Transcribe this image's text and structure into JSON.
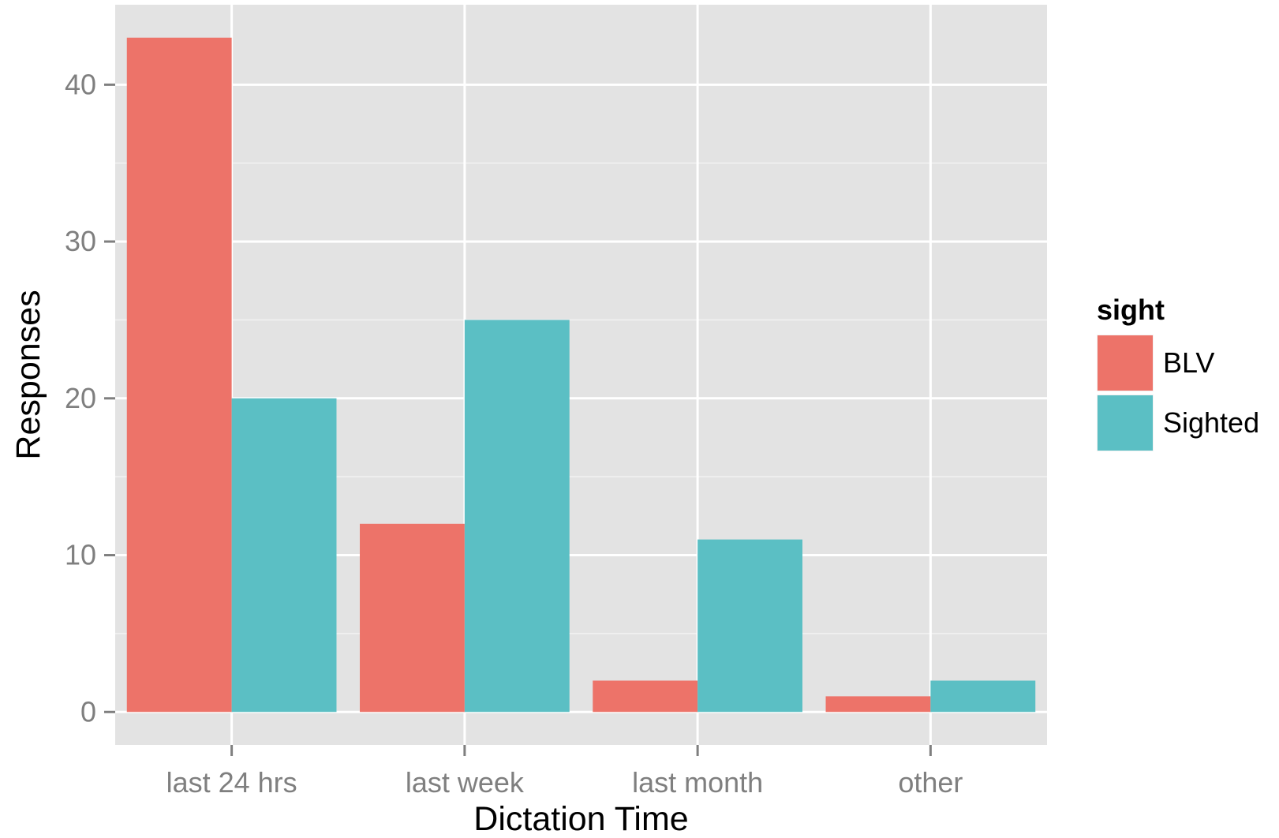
{
  "chart_data": {
    "type": "bar",
    "title": "",
    "xlabel": "Dictation Time",
    "ylabel": "Responses",
    "categories": [
      "last 24 hrs",
      "last week",
      "last month",
      "other"
    ],
    "series": [
      {
        "name": "BLV",
        "values": [
          43,
          12,
          2,
          1
        ],
        "color": "#ED7369"
      },
      {
        "name": "Sighted",
        "values": [
          20,
          25,
          11,
          2
        ],
        "color": "#5BBFC4"
      }
    ],
    "ylim": [
      -2.1,
      45.1
    ],
    "yticks": [
      0,
      10,
      20,
      30,
      40
    ],
    "yminor": [
      5,
      15,
      25,
      35
    ],
    "grid": true,
    "legend": {
      "title": "sight",
      "position": "right"
    },
    "colors": {
      "panel_background": "#E3E3E3",
      "grid_line": "#FFFFFF",
      "tick_text": "#7F7F7F",
      "axis_title": "#000000"
    }
  }
}
